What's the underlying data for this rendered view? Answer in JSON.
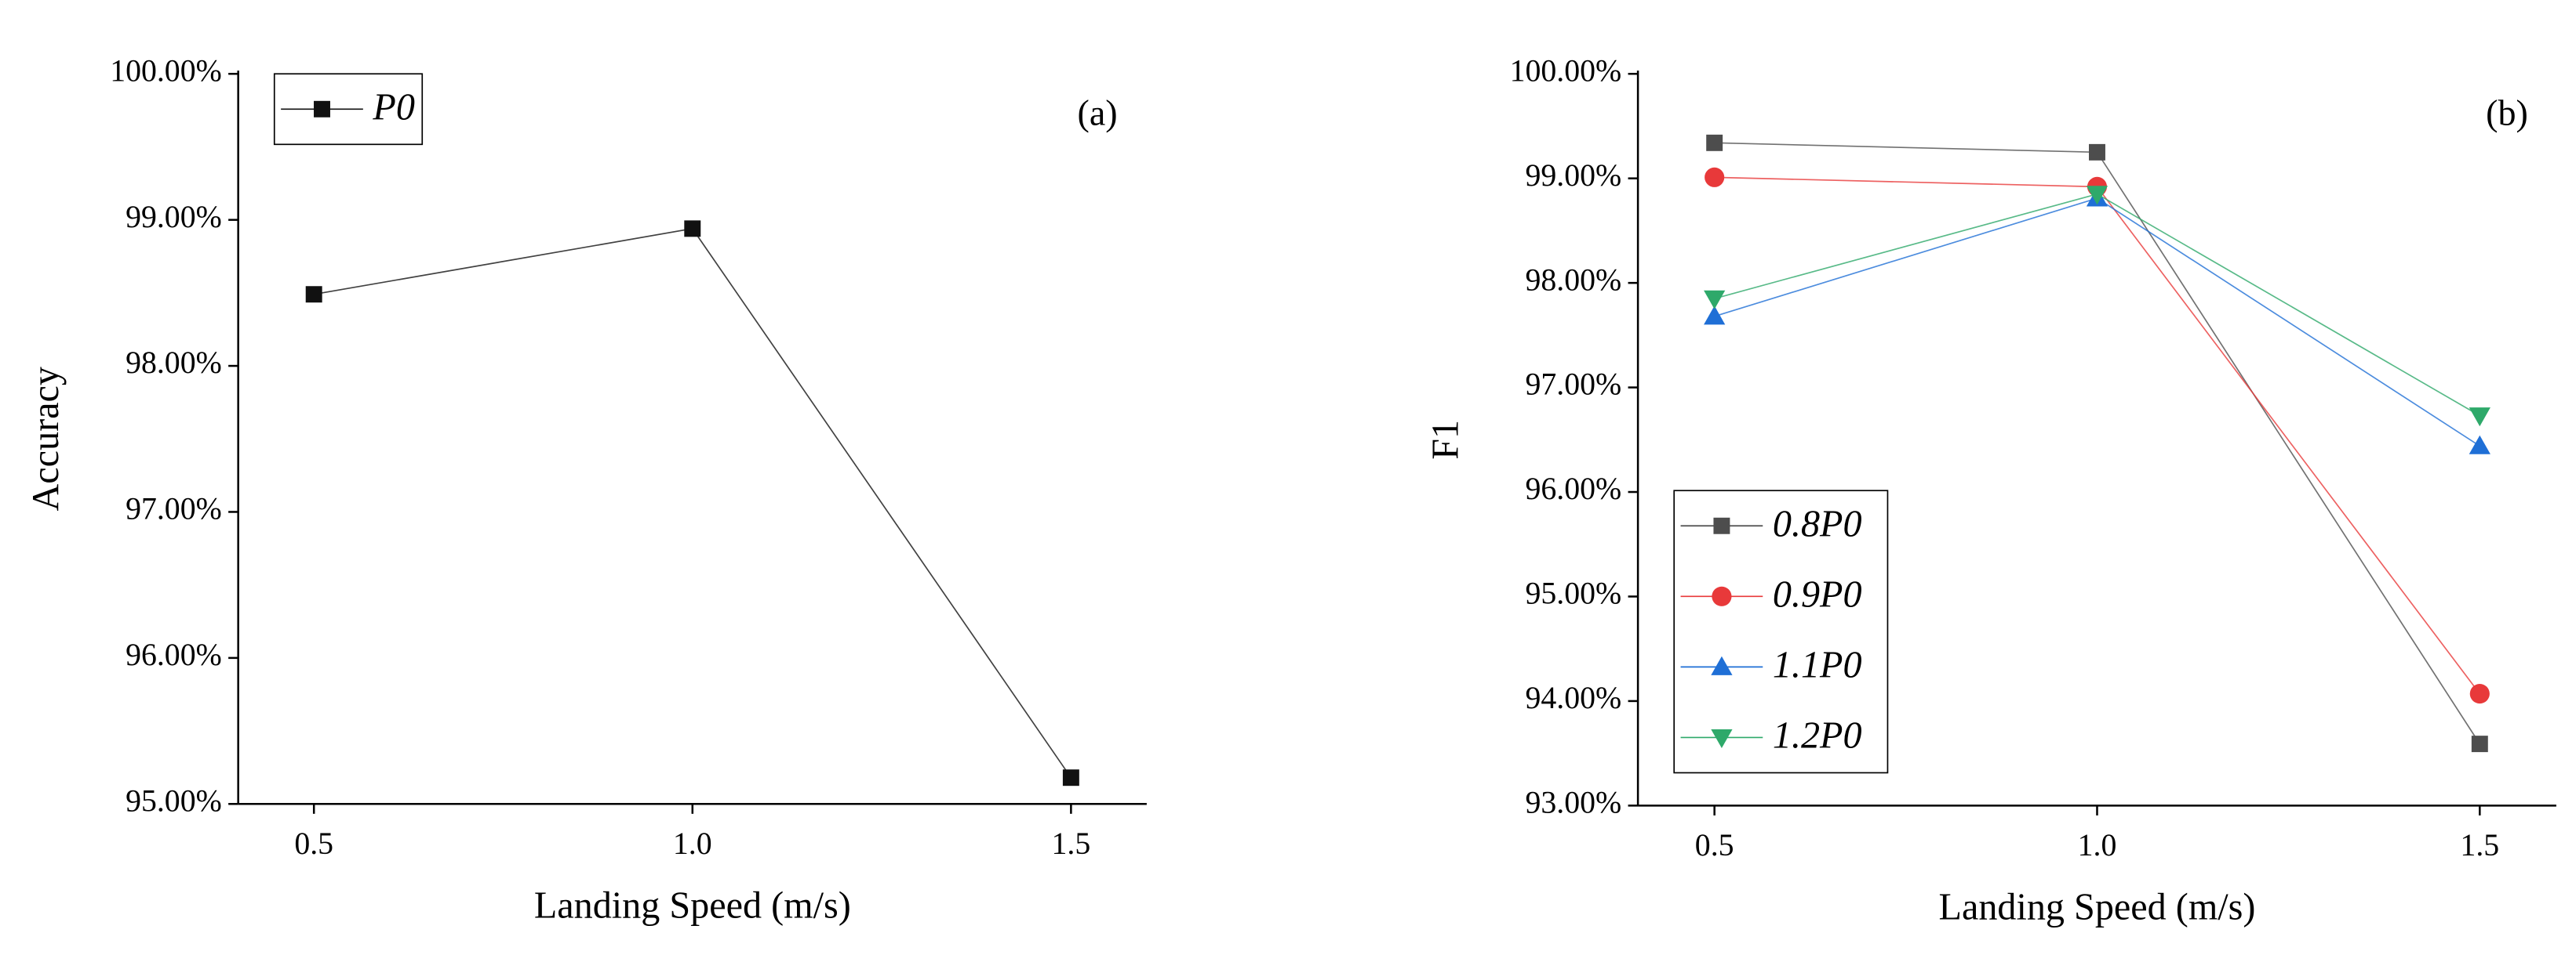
{
  "chart_data": [
    {
      "type": "line",
      "annotation": "(a)",
      "x_label": "Landing Speed (m/s)",
      "y_label": "Accuracy",
      "x": [
        0.5,
        1.0,
        1.5
      ],
      "series": [
        {
          "name": "P0",
          "color": "#111111",
          "marker": "square",
          "values": [
            98.49,
            98.94,
            95.18
          ]
        }
      ],
      "xlim": [
        0.4,
        1.6
      ],
      "xticks": [
        0.5,
        {
          "value": 1.0,
          "label": "1.0"
        },
        1.5
      ],
      "ylim": [
        95,
        100
      ],
      "yticks": [
        {
          "value": 95,
          "label": "95.00%"
        },
        {
          "value": 96,
          "label": "96.00%"
        },
        {
          "value": 97,
          "label": "97.00%"
        },
        {
          "value": 98,
          "label": "98.00%"
        },
        {
          "value": 99,
          "label": "99.00%"
        },
        {
          "value": 100,
          "label": "100.00%"
        }
      ],
      "legend": "upper left"
    },
    {
      "type": "line",
      "annotation": "(b)",
      "x_label": "Landing Speed (m/s)",
      "y_label": "F1",
      "x": [
        0.5,
        1.0,
        1.5
      ],
      "series": [
        {
          "name": "0.8P0",
          "color": "#4d4d4d",
          "marker": "square",
          "values": [
            99.34,
            99.25,
            93.59
          ]
        },
        {
          "name": "0.9P0",
          "color": "#e8393a",
          "marker": "circle",
          "values": [
            99.01,
            98.92,
            94.07
          ]
        },
        {
          "name": "1.1P0",
          "color": "#1f6fd6",
          "marker": "triangle-up",
          "values": [
            97.68,
            98.81,
            96.44
          ]
        },
        {
          "name": "1.2P0",
          "color": "#2ea96a",
          "marker": "triangle-down",
          "values": [
            97.85,
            98.85,
            96.73
          ]
        }
      ],
      "xlim": [
        0.4,
        1.6
      ],
      "xticks": [
        0.5,
        {
          "value": 1.0,
          "label": "1.0"
        },
        1.5
      ],
      "ylim": [
        93,
        100
      ],
      "yticks": [
        {
          "value": 93,
          "label": "93.00%"
        },
        {
          "value": 94,
          "label": "94.00%"
        },
        {
          "value": 95,
          "label": "95.00%"
        },
        {
          "value": 96,
          "label": "96.00%"
        },
        {
          "value": 97,
          "label": "97.00%"
        },
        {
          "value": 98,
          "label": "98.00%"
        },
        {
          "value": 99,
          "label": "99.00%"
        },
        {
          "value": 100,
          "label": "100.00%"
        }
      ],
      "legend": "lower left"
    }
  ]
}
